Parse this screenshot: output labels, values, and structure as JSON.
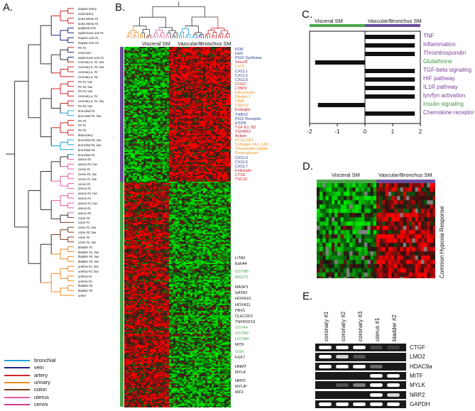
{
  "panels": {
    "A": "A.",
    "B": "B.",
    "C": "C.",
    "D": "D.",
    "E": "E."
  },
  "A": {
    "samples": [
      {
        "label": "hepatic artery",
        "color": "#d2232a"
      },
      {
        "label": "renal artery",
        "color": "#d2232a"
      },
      {
        "label": "aorta intima #1",
        "color": "#d2232a"
      },
      {
        "label": "aorta intima #2",
        "color": "#d2232a"
      },
      {
        "label": "popliteal vein",
        "color": "#1f2a7a"
      },
      {
        "label": "saphenous vein #1",
        "color": "#1f2a7a"
      },
      {
        "label": "hepatic vein #1",
        "color": "#1f2a7a"
      },
      {
        "label": "hepatic vein #2",
        "color": "#1f2a7a"
      },
      {
        "label": "PA #4",
        "color": "#d2232a"
      },
      {
        "label": "renal vein",
        "color": "#1f2a7a"
      },
      {
        "label": "saphenous vein #2",
        "color": "#1f2a7a"
      },
      {
        "label": "coronary a. #2, low",
        "color": "#d2232a"
      },
      {
        "label": "coronary a. #3, low",
        "color": "#d2232a"
      },
      {
        "label": "coronary a. #2",
        "color": "#d2232a"
      },
      {
        "label": "coronary a. #3",
        "color": "#d2232a"
      },
      {
        "label": "PA #1, low",
        "color": "#d2232a"
      },
      {
        "label": "PA #2, low",
        "color": "#d2232a"
      },
      {
        "label": "PA #4, low",
        "color": "#d2232a"
      },
      {
        "label": "coronary a. #1",
        "color": "#d2232a"
      },
      {
        "label": "coronary a. #1, low",
        "color": "#d2232a"
      },
      {
        "label": "PA #3, low",
        "color": "#d2232a"
      },
      {
        "label": "bronchial #2",
        "color": "#1ea5d8"
      },
      {
        "label": "bronchial #2, low",
        "color": "#1ea5d8"
      },
      {
        "label": "PA #3",
        "color": "#d2232a"
      },
      {
        "label": "PA #1",
        "color": "#d2232a"
      },
      {
        "label": "PA #2",
        "color": "#d2232a"
      },
      {
        "label": "tibial artery",
        "color": "#d2232a"
      },
      {
        "label": "bronchial #3, low",
        "color": "#1ea5d8"
      },
      {
        "label": "bronchial #4, low",
        "color": "#1ea5d8"
      },
      {
        "label": "bronchial #3",
        "color": "#1ea5d8"
      },
      {
        "label": "bronchial #4",
        "color": "#1ea5d8"
      },
      {
        "label": "uterus #3",
        "color": "#e55aa7"
      },
      {
        "label": "uterus #3, low",
        "color": "#e55aa7"
      },
      {
        "label": "cervix #1",
        "color": "#e55aa7"
      },
      {
        "label": "cervix #2, low",
        "color": "#e55aa7"
      },
      {
        "label": "cervix #1, low",
        "color": "#e55aa7"
      },
      {
        "label": "cervix #2",
        "color": "#e55aa7"
      },
      {
        "label": "uterus #2",
        "color": "#e55aa7"
      },
      {
        "label": "uterus #2, low",
        "color": "#e55aa7"
      },
      {
        "label": "uterus #4",
        "color": "#e55aa7"
      },
      {
        "label": "uterus #4, low",
        "color": "#e55aa7"
      },
      {
        "label": "uterus #1",
        "color": "#e55aa7"
      },
      {
        "label": "uterus #5",
        "color": "#e55aa7"
      },
      {
        "label": "colon #3",
        "color": "#7a3a1c"
      },
      {
        "label": "colon #1",
        "color": "#7a3a1c"
      },
      {
        "label": "colon #1, low",
        "color": "#7a3a1c"
      },
      {
        "label": "colon #3, low",
        "color": "#7a3a1c"
      },
      {
        "label": "colon #2",
        "color": "#7a3a1c"
      },
      {
        "label": "colon #2, low",
        "color": "#7a3a1c"
      },
      {
        "label": "bladder #1",
        "color": "#ef8a1e"
      },
      {
        "label": "bladder #1, low",
        "color": "#ef8a1e"
      },
      {
        "label": "bladder #2, low",
        "color": "#ef8a1e"
      },
      {
        "label": "bladder #3, low",
        "color": "#ef8a1e"
      },
      {
        "label": "urethra #1, low",
        "color": "#ef8a1e"
      },
      {
        "label": "urethra #2, low",
        "color": "#ef8a1e"
      },
      {
        "label": "urethra #1",
        "color": "#ef8a1e"
      },
      {
        "label": "urethra #2",
        "color": "#ef8a1e"
      },
      {
        "label": "bladder #3",
        "color": "#ef8a1e"
      },
      {
        "label": "bladder #2",
        "color": "#ef8a1e"
      },
      {
        "label": "ureter",
        "color": "#ef8a1e"
      }
    ],
    "legend": [
      {
        "label": "bronchial",
        "color": "#1ea5d8"
      },
      {
        "label": "vein",
        "color": "#1f2a7a"
      },
      {
        "label": "artery",
        "color": "#d2232a"
      },
      {
        "label": "urinary",
        "color": "#ef8a1e"
      },
      {
        "label": "colon",
        "color": "#7a3a1c"
      },
      {
        "label": "uterus",
        "color": "#e55aa7"
      },
      {
        "label": "cervix",
        "color": "#d03a90"
      }
    ]
  },
  "B": {
    "header_left": "Visceral SM",
    "header_right": "Vascular/Bronchus SM",
    "bar_top_color": "#6a4c9c",
    "bar_bottom_color": "#4aa64a",
    "genes": [
      {
        "label": "KDR",
        "color": "#2b3a8f"
      },
      {
        "label": "Del1",
        "color": "#2b3a8f"
      },
      {
        "label": "PGI2 Synthase",
        "color": "#2b3a8f"
      },
      {
        "label": "Smurf2",
        "color": "#c0212b"
      },
      {
        "label": "Col 5",
        "color": "#e8901f"
      },
      {
        "label": "CXCL1",
        "color": "#2b3a8f"
      },
      {
        "label": "CXCL2",
        "color": "#2b3a8f"
      },
      {
        "label": "CXCL6",
        "color": "#2b3a8f"
      },
      {
        "label": "COX2",
        "color": "#c0212b"
      },
      {
        "label": "LTBP2",
        "color": "#c0212b"
      },
      {
        "label": "Fibronectin",
        "color": "#e8901f"
      },
      {
        "label": "Fibrillin 1",
        "color": "#e8901f"
      },
      {
        "label": "TIMP",
        "color": "#e8901f"
      },
      {
        "label": "CSPG2",
        "color": "#e8901f"
      },
      {
        "label": "Endoglin",
        "color": "#c0212b"
      },
      {
        "label": "THBS2",
        "color": "#2b3a8f"
      },
      {
        "label": "PGI2 Receptor",
        "color": "#2b3a8f"
      },
      {
        "label": "ESDN",
        "color": "#2b3a8f"
      },
      {
        "label": "TGF B1, B2",
        "color": "#c0212b"
      },
      {
        "label": "TGFBR2",
        "color": "#c0212b"
      },
      {
        "label": "Activin",
        "color": "#c0212b"
      },
      {
        "label": "PCOLCE2",
        "color": "#e8901f"
      },
      {
        "label": "Collagen 1A1, 1A2..",
        "color": "#e8901f"
      },
      {
        "label": "Chondroitin sulfate",
        "color": "#e8901f"
      },
      {
        "label": "Proteoglycan",
        "color": "#e8901f"
      },
      {
        "label": "CXCL3",
        "color": "#2b3a8f"
      },
      {
        "label": "CXCL5",
        "color": "#2b3a8f"
      },
      {
        "label": "CXCL7",
        "color": "#2b3a8f"
      },
      {
        "label": "Follistatin",
        "color": "#c0212b"
      },
      {
        "label": "CTGF",
        "color": "#c0212b"
      },
      {
        "label": "TSC22",
        "color": "#c0212b"
      },
      {
        "label": "LITAF",
        "color": "#111111"
      },
      {
        "label": "EphA4",
        "color": "#111111"
      },
      {
        "label": "GSTM5",
        "color": "#4aa64a"
      },
      {
        "label": "MGST1",
        "color": "#4aa64a"
      },
      {
        "label": "MASP1",
        "color": "#111111"
      },
      {
        "label": "GATA2",
        "color": "#111111"
      },
      {
        "label": "HOXA10",
        "color": "#111111"
      },
      {
        "label": "HOXA11",
        "color": "#111111"
      },
      {
        "label": "PBX1",
        "color": "#111111"
      },
      {
        "label": "CLECSF2",
        "color": "#111111"
      },
      {
        "label": "TNFRSF19",
        "color": "#111111"
      },
      {
        "label": "GSTA4",
        "color": "#4aa64a"
      },
      {
        "label": "GSTM2",
        "color": "#4aa64a"
      },
      {
        "label": "GSTM4",
        "color": "#4aa64a"
      },
      {
        "label": "MITF",
        "color": "#111111"
      },
      {
        "label": "GSR",
        "color": "#4aa64a"
      },
      {
        "label": "FGF7",
        "color": "#111111"
      },
      {
        "label": "HNMT",
        "color": "#111111"
      },
      {
        "label": "MYLK",
        "color": "#111111"
      },
      {
        "label": "NRP2",
        "color": "#111111"
      },
      {
        "label": "MYLIP",
        "color": "#111111"
      },
      {
        "label": "IRF1",
        "color": "#111111"
      }
    ]
  },
  "C": {
    "header_left": "Visceral SM",
    "header_right": "Vascular/Bronchus SM",
    "header_left_color": "#4aa64a",
    "header_right_color": "#6a4c9c",
    "xticks": [
      "-2",
      "-1",
      "0",
      "1",
      "2"
    ],
    "bars": [
      {
        "label": "TNF",
        "value": 1.8,
        "color": "#7b3d9a"
      },
      {
        "label": "Inflammation",
        "value": 1.8,
        "color": "#7b3d9a"
      },
      {
        "label": "Thrombospondin",
        "value": 1.8,
        "color": "#7b3d9a"
      },
      {
        "label": "Glutathione",
        "value": -1.8,
        "color": "#3d9a3d"
      },
      {
        "label": "TGF-beta signaling",
        "value": 1.8,
        "color": "#7b3d9a"
      },
      {
        "label": "HIF pathway",
        "value": 1.8,
        "color": "#7b3d9a"
      },
      {
        "label": "IL1R pathway",
        "value": 1.8,
        "color": "#7b3d9a"
      },
      {
        "label": "lyn/fyn activation",
        "value": 1.8,
        "color": "#7b3d9a"
      },
      {
        "label": "Insulin signaling",
        "value": -1.7,
        "color": "#3d9a3d"
      },
      {
        "label": "Chemokine receptor",
        "value": 1.8,
        "color": "#7b3d9a"
      }
    ]
  },
  "D": {
    "header_left": "Visceral SM",
    "header_right": "Vascular/Bronchus SM",
    "side_label": "Common Hypoxia Response"
  },
  "E": {
    "lanes": [
      "coronary #1",
      "coronary #2",
      "coronary #3",
      "uterus #1",
      "bladder #2"
    ],
    "genes": [
      {
        "label": "CTGF",
        "bands": [
          1,
          1,
          1,
          0.15,
          0.1
        ]
      },
      {
        "label": "LMO2",
        "bands": [
          1,
          0.8,
          0.2,
          0,
          0
        ]
      },
      {
        "label": "HDAC9a",
        "bands": [
          1,
          1,
          1,
          0.3,
          0
        ]
      },
      {
        "label": "MITF",
        "bands": [
          0,
          0,
          0,
          1,
          1
        ]
      },
      {
        "label": "MYLK",
        "bands": [
          0,
          0.2,
          0.4,
          1,
          1
        ]
      },
      {
        "label": "NRP2",
        "bands": [
          0,
          0,
          0,
          1,
          0.8
        ]
      },
      {
        "label": "GAPDH",
        "bands": [
          1,
          1,
          1,
          1,
          1
        ]
      }
    ]
  }
}
